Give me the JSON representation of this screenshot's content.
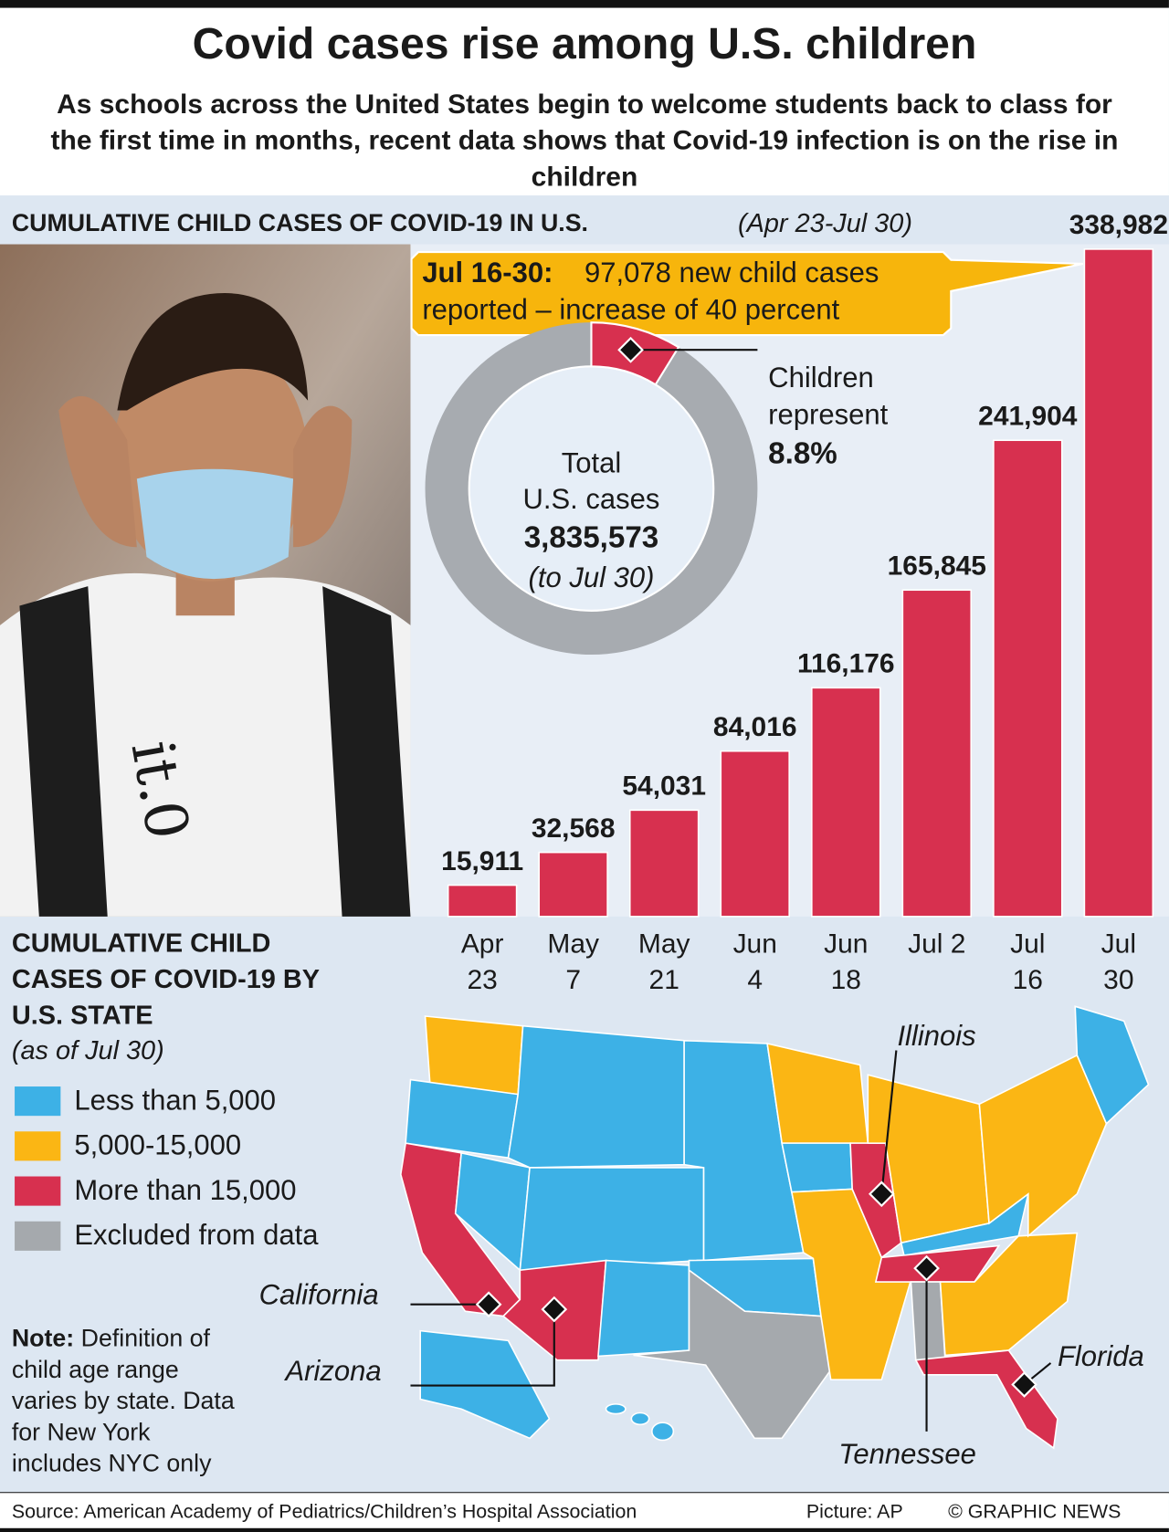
{
  "title": "Covid cases rise among U.S. children",
  "subtitle": "As schools across the United States begin to welcome students back to class for the first time in months, recent data shows that Covid-19 infection is on the rise in children",
  "chart_data": [
    {
      "type": "bar",
      "title": "CUMULATIVE CHILD CASES OF COVID-19 IN U.S.",
      "subtitle": "(Apr 23-Jul 30)",
      "categories": [
        "Apr 23",
        "May 7",
        "May 21",
        "Jun 4",
        "Jun 18",
        "Jul 2",
        "Jul 16",
        "Jul 30"
      ],
      "values": [
        15911,
        32568,
        54031,
        84016,
        116176,
        165845,
        241904,
        338982
      ],
      "value_labels": [
        "15,911",
        "32,568",
        "54,031",
        "84,016",
        "116,176",
        "165,845",
        "241,904",
        "338,982"
      ],
      "color": "#d7304f",
      "annotation": {
        "label": "Jul 16-30:",
        "text": [
          "97,078 new child cases",
          "reported – increase of 40 percent"
        ],
        "color": "#f7b50c"
      }
    },
    {
      "type": "donut",
      "categories": [
        "Children represent"
      ],
      "values": [
        8.8
      ],
      "value_labels": [
        "8.8%"
      ],
      "color": "#d7304f",
      "rest_color": "#a7abb0",
      "center_text": [
        "Total",
        "U.S. cases",
        "3,835,573",
        "(to Jul 30)"
      ]
    }
  ],
  "map": {
    "title": "CUMULATIVE CHILD CASES OF COVID-19 BY U.S. STATE",
    "subtitle": "(as of Jul 30)",
    "legend": [
      {
        "label": "Less than 5,000",
        "color": "#3db1e6"
      },
      {
        "label": "5,000-15,000",
        "color": "#fbb614"
      },
      {
        "label": "More than 15,000",
        "color": "#d7304f"
      },
      {
        "label": "Excluded from data",
        "color": "#a5a9ad"
      }
    ],
    "labels": [
      "California",
      "Arizona",
      "Illinois",
      "Tennessee",
      "Florida"
    ]
  },
  "note": {
    "label": "Note:",
    "text": "Definition of child age range varies by state. Data for New York includes NYC only"
  },
  "footer": {
    "source": "Source: American Academy of Pediatrics/Children’s Hospital Association",
    "picture": "Picture: AP",
    "credit": "© GRAPHIC NEWS"
  }
}
